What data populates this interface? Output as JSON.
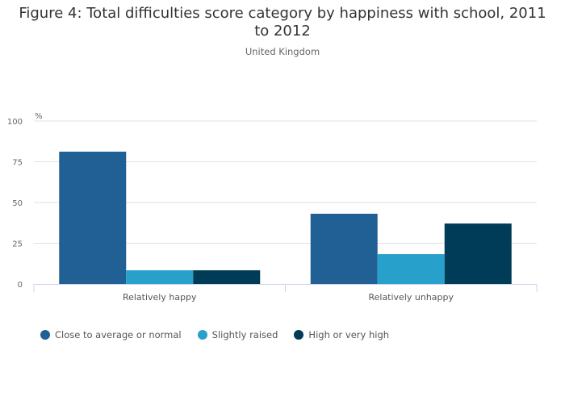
{
  "title": "Figure 4: Total difficulties score category by happiness with school, 2011 to 2012",
  "subtitle": "United Kingdom",
  "chart_data": {
    "type": "bar",
    "title": "Figure 4: Total difficulties score category by happiness with school, 2011 to 2012",
    "subtitle": "United Kingdom",
    "ylabel": "%",
    "ylim": [
      0,
      100
    ],
    "yticks": [
      0,
      25,
      50,
      75,
      100
    ],
    "grid": true,
    "legend_position": "bottom-left",
    "categories": [
      "Relatively happy",
      "Relatively unhappy"
    ],
    "series": [
      {
        "name": "Close to average or normal",
        "color": "#206095",
        "values": [
          81.2,
          43.1
        ]
      },
      {
        "name": "Slightly raised",
        "color": "#27a0cc",
        "values": [
          8.4,
          18.3
        ]
      },
      {
        "name": "High or very high",
        "color": "#003c57",
        "values": [
          8.4,
          37.1
        ]
      }
    ]
  }
}
